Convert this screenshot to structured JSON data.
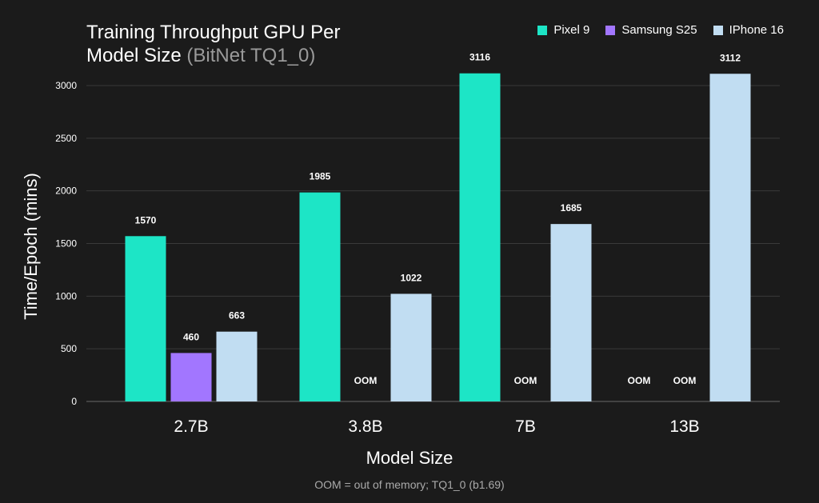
{
  "title_main": "Training Throughput GPU Per Model Size",
  "title_sub": "(BitNet TQ1_0)",
  "footnote": "OOM = out of memory; TQ1_0 (b1.69)",
  "oom_label": "OOM",
  "chart_data": {
    "type": "bar",
    "title": "Training Throughput GPU Per Model Size (BitNet TQ1_0)",
    "xlabel": "Model Size",
    "ylabel": "Time/Epoch (mins)",
    "categories": [
      "2.7B",
      "3.8B",
      "7B",
      "13B"
    ],
    "ylim": [
      0,
      3250
    ],
    "yticks": [
      0,
      500,
      1000,
      1500,
      2000,
      2500,
      3000
    ],
    "grid": true,
    "legend_position": "top-right",
    "series": [
      {
        "name": "Pixel 9",
        "color": "#1de5c6",
        "values": [
          1570,
          1985,
          3116,
          null
        ],
        "labels": [
          "1570",
          "1985",
          "3116",
          "OOM"
        ]
      },
      {
        "name": "Samsung S25",
        "color": "#a276ff",
        "values": [
          460,
          null,
          null,
          null
        ],
        "labels": [
          "460",
          "OOM",
          "OOM",
          "OOM"
        ]
      },
      {
        "name": "IPhone 16",
        "color": "#c1ddf2",
        "values": [
          663,
          1022,
          1685,
          3112
        ],
        "labels": [
          "663",
          "1022",
          "1685",
          "3112"
        ]
      }
    ]
  }
}
